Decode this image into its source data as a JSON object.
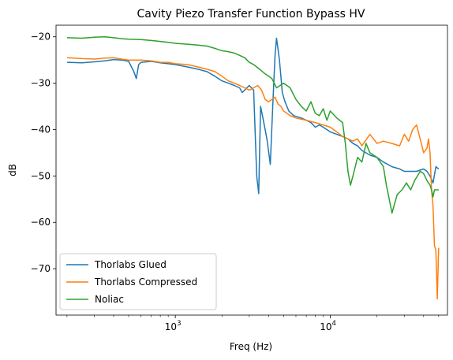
{
  "chart_data": {
    "type": "line",
    "title": "Cavity Piezo Transfer Function Bypass HV",
    "xlabel": "Freq (Hz)",
    "ylabel": "dB",
    "xscale": "log",
    "xlim": [
      170,
      57000
    ],
    "ylim": [
      -80,
      -17.5
    ],
    "xticks": [
      {
        "value": 1000,
        "base": "10",
        "exp": "3"
      },
      {
        "value": 10000,
        "base": "10",
        "exp": "4"
      }
    ],
    "yticks": [
      -70,
      -60,
      -50,
      -40,
      -30,
      -20
    ],
    "ytick_labels": [
      "−70",
      "−60",
      "−50",
      "−40",
      "−30",
      "−20"
    ],
    "grid": false,
    "legend_position": "lower-left",
    "series": [
      {
        "name": "Thorlabs Glued",
        "color": "#1f77b4",
        "x": [
          200,
          250,
          300,
          350,
          400,
          450,
          500,
          540,
          560,
          580,
          600,
          650,
          700,
          800,
          900,
          1000,
          1200,
          1400,
          1600,
          1800,
          2000,
          2200,
          2400,
          2600,
          2700,
          2800,
          3000,
          3200,
          3350,
          3450,
          3550,
          3700,
          3900,
          4100,
          4250,
          4400,
          4500,
          4700,
          4900,
          5100,
          5400,
          5800,
          6500,
          7000,
          7500,
          8000,
          8500,
          9000,
          10000,
          11000,
          12000,
          13000,
          14000,
          15000,
          16000,
          18000,
          20000,
          22000,
          25000,
          28000,
          30000,
          33000,
          36000,
          40000,
          42000,
          44000,
          46000,
          48000,
          50000
        ],
        "y": [
          -25.5,
          -25.6,
          -25.4,
          -25.2,
          -24.9,
          -25.0,
          -25.3,
          -27.5,
          -29.0,
          -26.0,
          -25.5,
          -25.4,
          -25.3,
          -25.6,
          -25.8,
          -26.0,
          -26.5,
          -27.0,
          -27.5,
          -28.5,
          -29.5,
          -30.0,
          -30.5,
          -31.0,
          -32.0,
          -31.5,
          -30.5,
          -31.5,
          -50.0,
          -53.8,
          -35.0,
          -38.0,
          -42.0,
          -47.5,
          -35.0,
          -24.0,
          -20.3,
          -25.0,
          -32.0,
          -34.0,
          -36.0,
          -37.0,
          -37.5,
          -38.0,
          -38.5,
          -39.5,
          -39.0,
          -39.5,
          -40.5,
          -41.0,
          -41.5,
          -42.0,
          -43.0,
          -43.5,
          -44.5,
          -45.5,
          -46.0,
          -47.0,
          -48.0,
          -48.5,
          -49.0,
          -49.0,
          -49.0,
          -48.5,
          -49.0,
          -50.0,
          -51.5,
          -48.0,
          -48.5
        ]
      },
      {
        "name": "Thorlabs Compressed",
        "color": "#ff7f0e",
        "x": [
          200,
          250,
          300,
          350,
          400,
          450,
          500,
          600,
          700,
          800,
          900,
          1000,
          1200,
          1400,
          1600,
          1800,
          2000,
          2200,
          2400,
          2600,
          2800,
          3000,
          3200,
          3400,
          3600,
          3800,
          4000,
          4200,
          4400,
          4600,
          4800,
          5000,
          5500,
          6000,
          7000,
          8000,
          9000,
          10000,
          11000,
          12000,
          13000,
          14000,
          15000,
          16000,
          18000,
          20000,
          22000,
          25000,
          28000,
          30000,
          32000,
          34000,
          36000,
          38000,
          40000,
          42000,
          43000,
          44000,
          45000,
          46000,
          47000,
          48000,
          49000,
          50000
        ],
        "y": [
          -24.5,
          -24.7,
          -24.8,
          -24.6,
          -24.5,
          -24.8,
          -25.0,
          -25.0,
          -25.2,
          -25.5,
          -25.5,
          -25.8,
          -26.0,
          -26.5,
          -27.0,
          -27.5,
          -28.5,
          -29.5,
          -30.0,
          -30.5,
          -31.0,
          -31.5,
          -31.0,
          -30.5,
          -31.5,
          -33.5,
          -34.0,
          -33.5,
          -33.0,
          -34.5,
          -35.0,
          -36.0,
          -37.0,
          -37.5,
          -38.0,
          -38.5,
          -39.0,
          -39.5,
          -40.5,
          -41.5,
          -42.0,
          -42.5,
          -42.0,
          -43.5,
          -41.0,
          -43.0,
          -42.5,
          -43.0,
          -43.5,
          -41.0,
          -42.5,
          -40.0,
          -39.0,
          -42.0,
          -45.0,
          -44.0,
          -42.0,
          -45.0,
          -53.0,
          -56.5,
          -65.0,
          -66.0,
          -76.5,
          -65.5
        ]
      },
      {
        "name": "Noliac",
        "color": "#2ca02c",
        "x": [
          200,
          250,
          300,
          350,
          400,
          450,
          500,
          600,
          700,
          800,
          900,
          1000,
          1200,
          1400,
          1600,
          1800,
          2000,
          2200,
          2400,
          2600,
          2800,
          3000,
          3200,
          3500,
          3800,
          4000,
          4200,
          4500,
          5000,
          5500,
          6000,
          6500,
          7000,
          7500,
          8000,
          8500,
          9000,
          9500,
          10000,
          11000,
          12000,
          12500,
          13000,
          13500,
          14000,
          15000,
          16000,
          17000,
          18000,
          20000,
          22000,
          23000,
          24000,
          25000,
          27000,
          29000,
          31000,
          33000,
          35000,
          38000,
          40000,
          42000,
          44000,
          45000,
          46000,
          47000,
          48000,
          50000
        ],
        "y": [
          -20.2,
          -20.3,
          -20.1,
          -20.0,
          -20.2,
          -20.4,
          -20.5,
          -20.6,
          -20.8,
          -21.0,
          -21.2,
          -21.4,
          -21.6,
          -21.8,
          -22.0,
          -22.5,
          -23.0,
          -23.2,
          -23.5,
          -24.0,
          -24.5,
          -25.5,
          -26.0,
          -27.0,
          -28.0,
          -28.5,
          -29.0,
          -31.0,
          -30.0,
          -31.0,
          -33.5,
          -35.0,
          -36.0,
          -34.0,
          -36.5,
          -37.0,
          -35.5,
          -38.0,
          -36.0,
          -37.5,
          -38.5,
          -43.0,
          -49.0,
          -52.0,
          -50.0,
          -46.0,
          -47.0,
          -43.0,
          -45.0,
          -46.0,
          -48.0,
          -52.0,
          -55.0,
          -58.0,
          -54.0,
          -53.0,
          -51.5,
          -53.0,
          -51.0,
          -49.0,
          -49.5,
          -51.0,
          -52.0,
          -53.0,
          -54.5,
          -53.0,
          -53.0,
          -53.0
        ]
      }
    ]
  }
}
